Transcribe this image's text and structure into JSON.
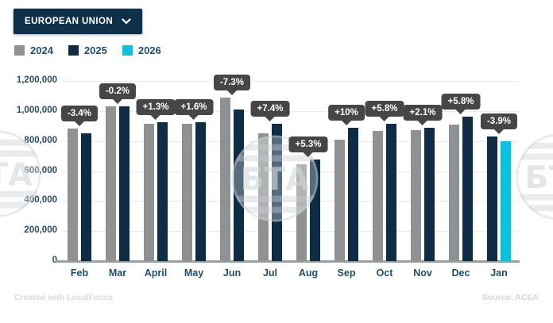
{
  "dropdown": {
    "label": "EUROPEAN UNION",
    "icon": "chevron-down"
  },
  "legend": [
    {
      "label": "2024",
      "color": "#8f9293"
    },
    {
      "label": "2025",
      "color": "#0e2d44"
    },
    {
      "label": "2026",
      "color": "#0cc0de"
    }
  ],
  "chart_data": {
    "type": "bar",
    "title": "",
    "categories": [
      "Feb",
      "Mar",
      "April",
      "May",
      "Jun",
      "Jul",
      "Aug",
      "Sep",
      "Oct",
      "Nov",
      "Dec",
      "Jan"
    ],
    "series": [
      {
        "name": "2024",
        "color": "#8f9293",
        "values": [
          883000,
          1032000,
          914000,
          912000,
          1090000,
          852000,
          644000,
          809000,
          866000,
          870000,
          910000,
          null
        ]
      },
      {
        "name": "2025",
        "color": "#0e2d44",
        "values": [
          853000,
          1030000,
          926000,
          927000,
          1010000,
          915000,
          678000,
          890000,
          916000,
          888000,
          963000,
          831000
        ]
      },
      {
        "name": "2026",
        "color": "#0cc0de",
        "values": [
          null,
          null,
          null,
          null,
          null,
          null,
          null,
          null,
          null,
          null,
          null,
          799000
        ]
      }
    ],
    "change_labels": [
      "-3.4%",
      "-0.2%",
      "+1.3%",
      "+1.6%",
      "-7.3%",
      "+7.4%",
      "+5.3%",
      "+10%",
      "+5.8%",
      "+2.1%",
      "+5.8%",
      "-3.9%"
    ],
    "ylim": [
      0,
      1200000
    ],
    "ytick_interval": 200000,
    "yticks": [
      "0",
      "200,000",
      "400,000",
      "600,000",
      "800,000",
      "1,000,000",
      "1,200,000"
    ],
    "grid": true,
    "legend_position": "top-left"
  },
  "watermark": {
    "text": "БТА"
  },
  "footer": {
    "left": "Created with LocalFocus",
    "right": "Source: ACEA"
  }
}
